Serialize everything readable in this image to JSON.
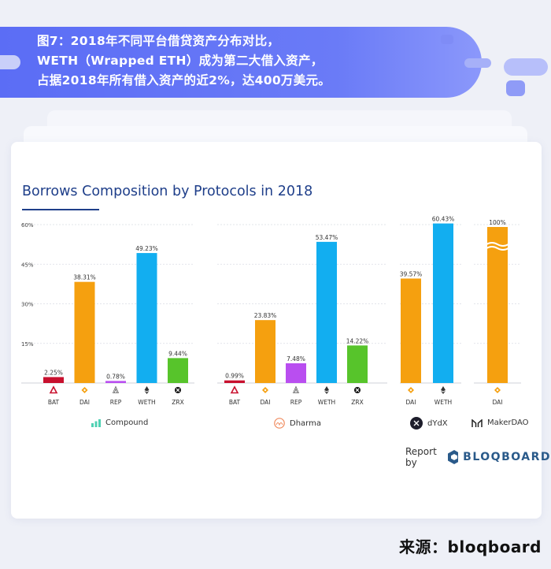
{
  "header": {
    "lines": [
      "图7：2018年不同平台借贷资产分布对比，",
      "WETH（Wrapped ETH）成为第二大借入资产，",
      "占据2018年所有借入资产的近2%，达400万美元。"
    ]
  },
  "chart_title": "Borrows Composition by Protocols in 2018",
  "chart_data": {
    "type": "bar",
    "title": "Borrows Composition by Protocols in 2018",
    "ylim": [
      0,
      60
    ],
    "y_ticks": [
      "60%",
      "45%",
      "30%",
      "15%"
    ],
    "grid": true,
    "groups": [
      {
        "name": "Compound",
        "categories": [
          "BAT",
          "DAI",
          "REP",
          "WETH",
          "ZRX"
        ],
        "values": [
          2.25,
          38.31,
          0.78,
          49.23,
          9.44
        ],
        "labels": [
          "2.25%",
          "38.31%",
          "0.78%",
          "49.23%",
          "9.44%"
        ]
      },
      {
        "name": "Dharma",
        "categories": [
          "BAT",
          "DAI",
          "REP",
          "WETH",
          "ZRX"
        ],
        "values": [
          0.99,
          23.83,
          7.48,
          53.47,
          14.22
        ],
        "labels": [
          "0.99%",
          "23.83%",
          "7.48%",
          "53.47%",
          "14.22%"
        ]
      },
      {
        "name": "dYdX",
        "categories": [
          "DAI",
          "WETH"
        ],
        "values": [
          39.57,
          60.43
        ],
        "labels": [
          "39.57%",
          "60.43%"
        ]
      },
      {
        "name": "MakerDAO",
        "categories": [
          "DAI"
        ],
        "values": [
          100
        ],
        "labels": [
          "100%"
        ],
        "axis_break": true
      }
    ],
    "colors": {
      "BAT": "#c8102e",
      "DAI": "#f5a00f",
      "REP": "#b94ef0",
      "WETH": "#12aef0",
      "ZRX": "#57c42b"
    }
  },
  "footer": {
    "report_by": "Report by",
    "brand": "BLOQBOARD",
    "source": "来源：bloqboard"
  }
}
